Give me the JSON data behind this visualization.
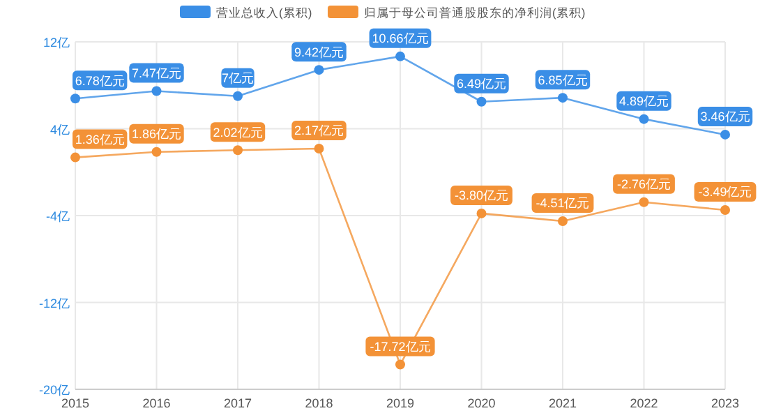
{
  "chart_data": {
    "type": "line",
    "categories": [
      "2015",
      "2016",
      "2017",
      "2018",
      "2019",
      "2020",
      "2021",
      "2022",
      "2023"
    ],
    "series": [
      {
        "name": "营业总收入(累积)",
        "color": "#3a8ee6",
        "values": [
          6.78,
          7.47,
          7,
          9.42,
          10.66,
          6.49,
          6.85,
          4.89,
          3.46
        ],
        "value_labels": [
          "6.78亿元",
          "7.47亿元",
          "7亿元",
          "9.42亿元",
          "10.66亿元",
          "6.49亿元",
          "6.85亿元",
          "4.89亿元",
          "3.46亿元"
        ]
      },
      {
        "name": "归属于母公司普通股股东的净利润(累积)",
        "color": "#f39237",
        "values": [
          1.36,
          1.86,
          2.02,
          2.17,
          -17.72,
          -3.8,
          -4.51,
          -2.76,
          -3.49
        ],
        "value_labels": [
          "1.36亿元",
          "1.86亿元",
          "2.02亿元",
          "2.17亿元",
          "-17.72亿元",
          "-3.80亿元",
          "-4.51亿元",
          "-2.76亿元",
          "-3.49亿元"
        ]
      }
    ],
    "ylim": [
      -20,
      12
    ],
    "yticks": [
      {
        "value": 12,
        "label": "12亿"
      },
      {
        "value": 4,
        "label": "4亿"
      },
      {
        "value": -4,
        "label": "-4亿"
      },
      {
        "value": -12,
        "label": "-12亿"
      },
      {
        "value": -20,
        "label": "-20亿"
      }
    ],
    "grid": true,
    "legend": "top",
    "marker": "circle",
    "line_style": "solid"
  }
}
